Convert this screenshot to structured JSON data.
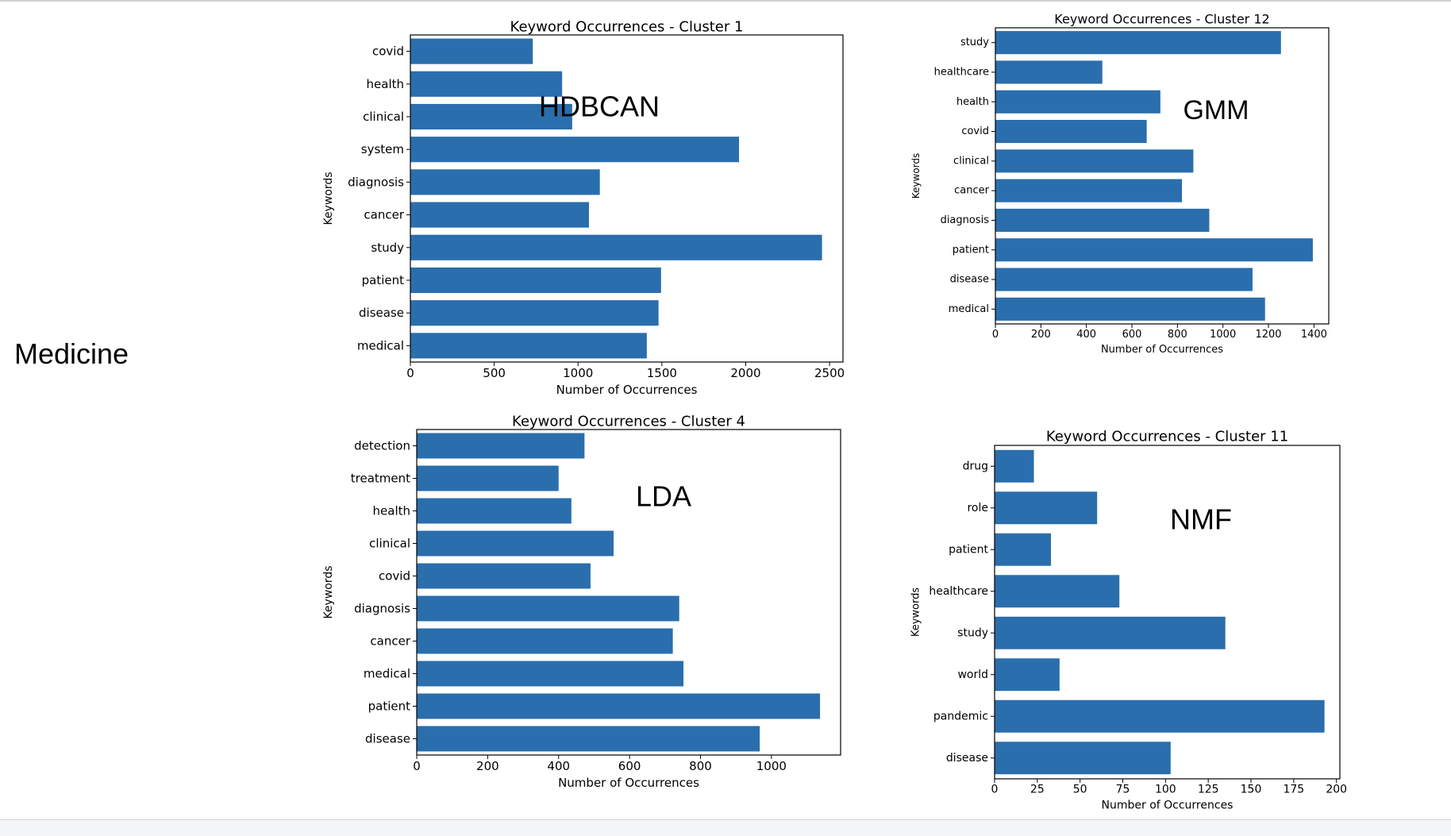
{
  "row_label": "Medicine",
  "bar_color": "#2a6ead",
  "chart_data": [
    {
      "type": "bar",
      "orientation": "horizontal",
      "title": "Keyword Occurrences - Cluster 1",
      "method_label": "HDBCAN",
      "xlabel": "Number of Occurrences",
      "ylabel": "Keywords",
      "xlim": [
        0,
        2580
      ],
      "xticks": [
        0,
        500,
        1000,
        1500,
        2000,
        2500
      ],
      "categories": [
        "covid",
        "health",
        "clinical",
        "system",
        "diagnosis",
        "cancer",
        "study",
        "patient",
        "disease",
        "medical"
      ],
      "values": [
        730,
        905,
        965,
        1960,
        1130,
        1065,
        2455,
        1495,
        1480,
        1410
      ]
    },
    {
      "type": "bar",
      "orientation": "horizontal",
      "title": "Keyword Occurrences - Cluster 12",
      "method_label": "GMM",
      "xlabel": "Number of Occurrences",
      "ylabel": "Keywords",
      "xlim": [
        0,
        1465
      ],
      "xticks": [
        0,
        200,
        400,
        600,
        800,
        1000,
        1200,
        1400
      ],
      "categories": [
        "study",
        "healthcare",
        "health",
        "covid",
        "clinical",
        "cancer",
        "diagnosis",
        "patient",
        "disease",
        "medical"
      ],
      "values": [
        1255,
        470,
        725,
        665,
        870,
        820,
        940,
        1395,
        1130,
        1185
      ]
    },
    {
      "type": "bar",
      "orientation": "horizontal",
      "title": "Keyword Occurrences - Cluster 4",
      "method_label": "LDA",
      "xlabel": "Number of Occurrences",
      "ylabel": "Keywords",
      "xlim": [
        0,
        1195
      ],
      "xticks": [
        0,
        200,
        400,
        600,
        800,
        1000
      ],
      "categories": [
        "detection",
        "treatment",
        "health",
        "clinical",
        "covid",
        "diagnosis",
        "cancer",
        "medical",
        "patient",
        "disease"
      ],
      "values": [
        473,
        400,
        436,
        555,
        490,
        740,
        722,
        752,
        1137,
        967
      ]
    },
    {
      "type": "bar",
      "orientation": "horizontal",
      "title": "Keyword Occurrences - Cluster 11",
      "method_label": "NMF",
      "xlabel": "Number of Occurrences",
      "ylabel": "Keywords",
      "xlim": [
        0,
        202
      ],
      "xticks": [
        0,
        25,
        50,
        75,
        100,
        125,
        150,
        175,
        200
      ],
      "categories": [
        "drug",
        "role",
        "patient",
        "healthcare",
        "study",
        "world",
        "pandemic",
        "disease"
      ],
      "values": [
        23,
        60,
        33,
        73,
        135,
        38,
        193,
        103
      ]
    }
  ]
}
